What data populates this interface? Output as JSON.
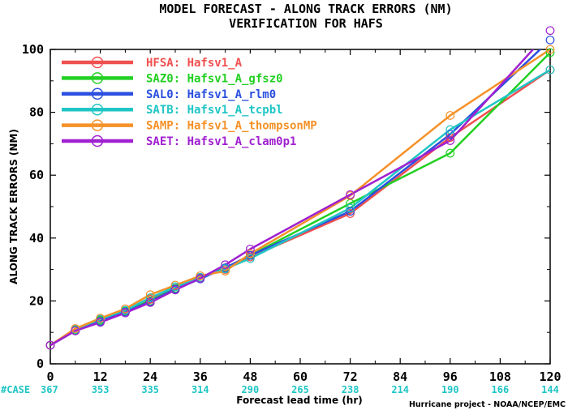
{
  "chart_data": {
    "type": "line",
    "title": "MODEL FORECAST - ALONG TRACK ERRORS (NM)",
    "subtitle": "VERIFICATION FOR HAFS",
    "xlabel": "Forecast lead time (hr)",
    "ylabel": "ALONG TRACK ERRORS (NM)",
    "xlim": [
      0,
      120
    ],
    "ylim": [
      0,
      100
    ],
    "x_ticks": [
      0,
      12,
      24,
      36,
      48,
      60,
      72,
      84,
      96,
      108,
      120
    ],
    "y_ticks": [
      0,
      20,
      40,
      60,
      80,
      100
    ],
    "case_label": "#CASE",
    "case_counts": [
      367,
      353,
      335,
      314,
      290,
      265,
      238,
      214,
      190,
      166,
      144
    ],
    "credit": "Hurricane project - NOAA/NCEP/EMC",
    "grid": false,
    "legend_position": "top-left",
    "x": [
      0,
      6,
      12,
      18,
      24,
      30,
      36,
      42,
      48,
      72,
      96,
      120
    ],
    "series": [
      {
        "name": "HFSA: Hafsv1_A",
        "color": "#f0504f",
        "values": [
          5.9,
          11.0,
          14.0,
          17.0,
          20.5,
          24.0,
          27.5,
          30.0,
          34.0,
          47.8,
          72.0,
          93.5
        ]
      },
      {
        "name": "SAZ0: Hafsv1_A_gfsz0",
        "color": "#22d022",
        "values": [
          5.9,
          10.8,
          13.8,
          16.8,
          20.0,
          24.0,
          27.4,
          30.5,
          34.5,
          51.0,
          67.0,
          99.0
        ]
      },
      {
        "name": "SAL0: Hafsv1_A_rlm0",
        "color": "#2b4fe0",
        "values": [
          5.9,
          10.5,
          13.5,
          16.5,
          19.8,
          23.8,
          27.0,
          30.5,
          34.5,
          48.5,
          73.0,
          103.0
        ]
      },
      {
        "name": "SATB: Hafsv1_A_tcpbl",
        "color": "#20c5c5",
        "values": [
          5.9,
          11.0,
          14.2,
          17.0,
          21.0,
          24.5,
          27.5,
          30.2,
          33.5,
          49.5,
          74.5,
          93.5
        ]
      },
      {
        "name": "SAMP: Hafsv1_A_thompsonMP",
        "color": "#f59128",
        "values": [
          5.9,
          11.2,
          14.5,
          17.5,
          22.0,
          25.0,
          28.0,
          29.5,
          35.0,
          53.5,
          79.0,
          100.0
        ]
      },
      {
        "name": "SAET: Hafsv1_A_clam0p1",
        "color": "#a020d0",
        "values": [
          5.9,
          10.5,
          13.2,
          16.2,
          19.5,
          23.5,
          27.2,
          31.5,
          36.5,
          53.8,
          71.0,
          106.0
        ]
      }
    ]
  }
}
